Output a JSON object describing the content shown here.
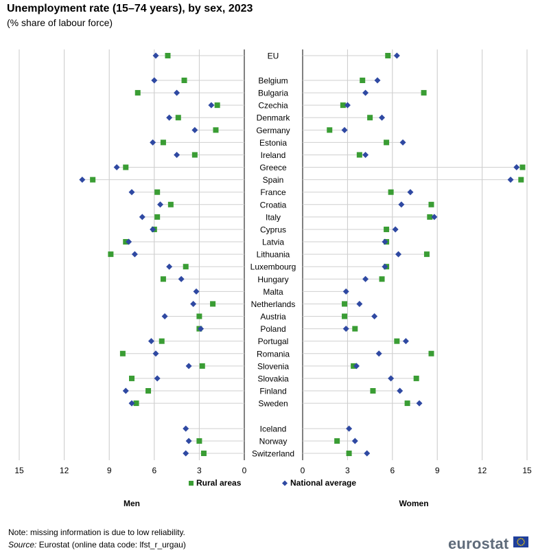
{
  "header": {
    "title": "Unemployment rate (15–74 years), by sex, 2023",
    "subtitle": "(% share of labour force)"
  },
  "footer": {
    "note": "Note: missing information is due to low reliability.",
    "source_label": "Source:",
    "source_text": " Eurostat (online data code: lfst_r_urgau)",
    "logo": "eurostat"
  },
  "colors": {
    "rural": "#3a9d34",
    "national": "#2f49a2",
    "grid": "#c8c8c8",
    "axis": "#000000"
  },
  "chart_data": {
    "type": "scatter",
    "title": "Unemployment rate (15–74 years), by sex, 2023",
    "subtitle": "(% share of labour force)",
    "panels": [
      "Men",
      "Women"
    ],
    "xlim": [
      0,
      15
    ],
    "xticks": [
      15,
      12,
      9,
      6,
      3,
      0
    ],
    "xticks_right": [
      0,
      3,
      6,
      9,
      12,
      15
    ],
    "legend": [
      "Rural areas",
      "National average"
    ],
    "legend_position": "bottom-center",
    "countries": [
      {
        "name": "EU",
        "men": [
          5.1,
          5.9
        ],
        "women": [
          5.7,
          6.3
        ]
      },
      {
        "name": "Belgium",
        "men": [
          4.0,
          6.0
        ],
        "women": [
          4.0,
          5.0
        ]
      },
      {
        "name": "Bulgaria",
        "men": [
          7.1,
          4.5
        ],
        "women": [
          8.1,
          4.2
        ]
      },
      {
        "name": "Czechia",
        "men": [
          1.8,
          2.2
        ],
        "women": [
          2.7,
          3.0
        ]
      },
      {
        "name": "Denmark",
        "men": [
          4.4,
          5.0
        ],
        "women": [
          4.5,
          5.3
        ]
      },
      {
        "name": "Germany",
        "men": [
          1.9,
          3.3
        ],
        "women": [
          1.8,
          2.8
        ]
      },
      {
        "name": "Estonia",
        "men": [
          5.4,
          6.1
        ],
        "women": [
          5.6,
          6.7
        ]
      },
      {
        "name": "Ireland",
        "men": [
          3.3,
          4.5
        ],
        "women": [
          3.8,
          4.2
        ]
      },
      {
        "name": "Greece",
        "men": [
          7.9,
          8.5
        ],
        "women": [
          14.7,
          14.3
        ]
      },
      {
        "name": "Spain",
        "men": [
          10.1,
          10.8
        ],
        "women": [
          14.6,
          13.9
        ]
      },
      {
        "name": "France",
        "men": [
          5.8,
          7.5
        ],
        "women": [
          5.9,
          7.2
        ]
      },
      {
        "name": "Croatia",
        "men": [
          4.9,
          5.6
        ],
        "women": [
          8.6,
          6.6
        ]
      },
      {
        "name": "Italy",
        "men": [
          5.8,
          6.8
        ],
        "women": [
          8.5,
          8.8
        ]
      },
      {
        "name": "Cyprus",
        "men": [
          6.0,
          6.1
        ],
        "women": [
          5.6,
          6.2
        ]
      },
      {
        "name": "Latvia",
        "men": [
          7.9,
          7.7
        ],
        "women": [
          5.6,
          5.5
        ]
      },
      {
        "name": "Lithuania",
        "men": [
          8.9,
          7.3
        ],
        "women": [
          8.3,
          6.4
        ]
      },
      {
        "name": "Luxembourg",
        "men": [
          3.9,
          5.0
        ],
        "women": [
          5.6,
          5.5
        ]
      },
      {
        "name": "Hungary",
        "men": [
          5.4,
          4.2
        ],
        "women": [
          5.3,
          4.2
        ]
      },
      {
        "name": "Malta",
        "men": [
          null,
          3.2
        ],
        "women": [
          null,
          2.9
        ]
      },
      {
        "name": "Netherlands",
        "men": [
          2.1,
          3.4
        ],
        "women": [
          2.8,
          3.8
        ]
      },
      {
        "name": "Austria",
        "men": [
          3.0,
          5.3
        ],
        "women": [
          2.8,
          4.8
        ]
      },
      {
        "name": "Poland",
        "men": [
          3.0,
          2.9
        ],
        "women": [
          3.5,
          2.9
        ]
      },
      {
        "name": "Portugal",
        "men": [
          5.5,
          6.2
        ],
        "women": [
          6.3,
          6.9
        ]
      },
      {
        "name": "Romania",
        "men": [
          8.1,
          5.9
        ],
        "women": [
          8.6,
          5.1
        ]
      },
      {
        "name": "Slovenia",
        "men": [
          2.8,
          3.7
        ],
        "women": [
          3.4,
          3.6
        ]
      },
      {
        "name": "Slovakia",
        "men": [
          7.5,
          5.8
        ],
        "women": [
          7.6,
          5.9
        ]
      },
      {
        "name": "Finland",
        "men": [
          6.4,
          7.9
        ],
        "women": [
          4.7,
          6.5
        ]
      },
      {
        "name": "Sweden",
        "men": [
          7.2,
          7.5
        ],
        "women": [
          7.0,
          7.8
        ]
      },
      {
        "name": "Iceland",
        "men": [
          null,
          3.9
        ],
        "women": [
          null,
          3.1
        ]
      },
      {
        "name": "Norway",
        "men": [
          3.0,
          3.7
        ],
        "women": [
          2.3,
          3.5
        ]
      },
      {
        "name": "Switzerland",
        "men": [
          2.7,
          3.9
        ],
        "women": [
          3.1,
          4.3
        ]
      }
    ]
  }
}
